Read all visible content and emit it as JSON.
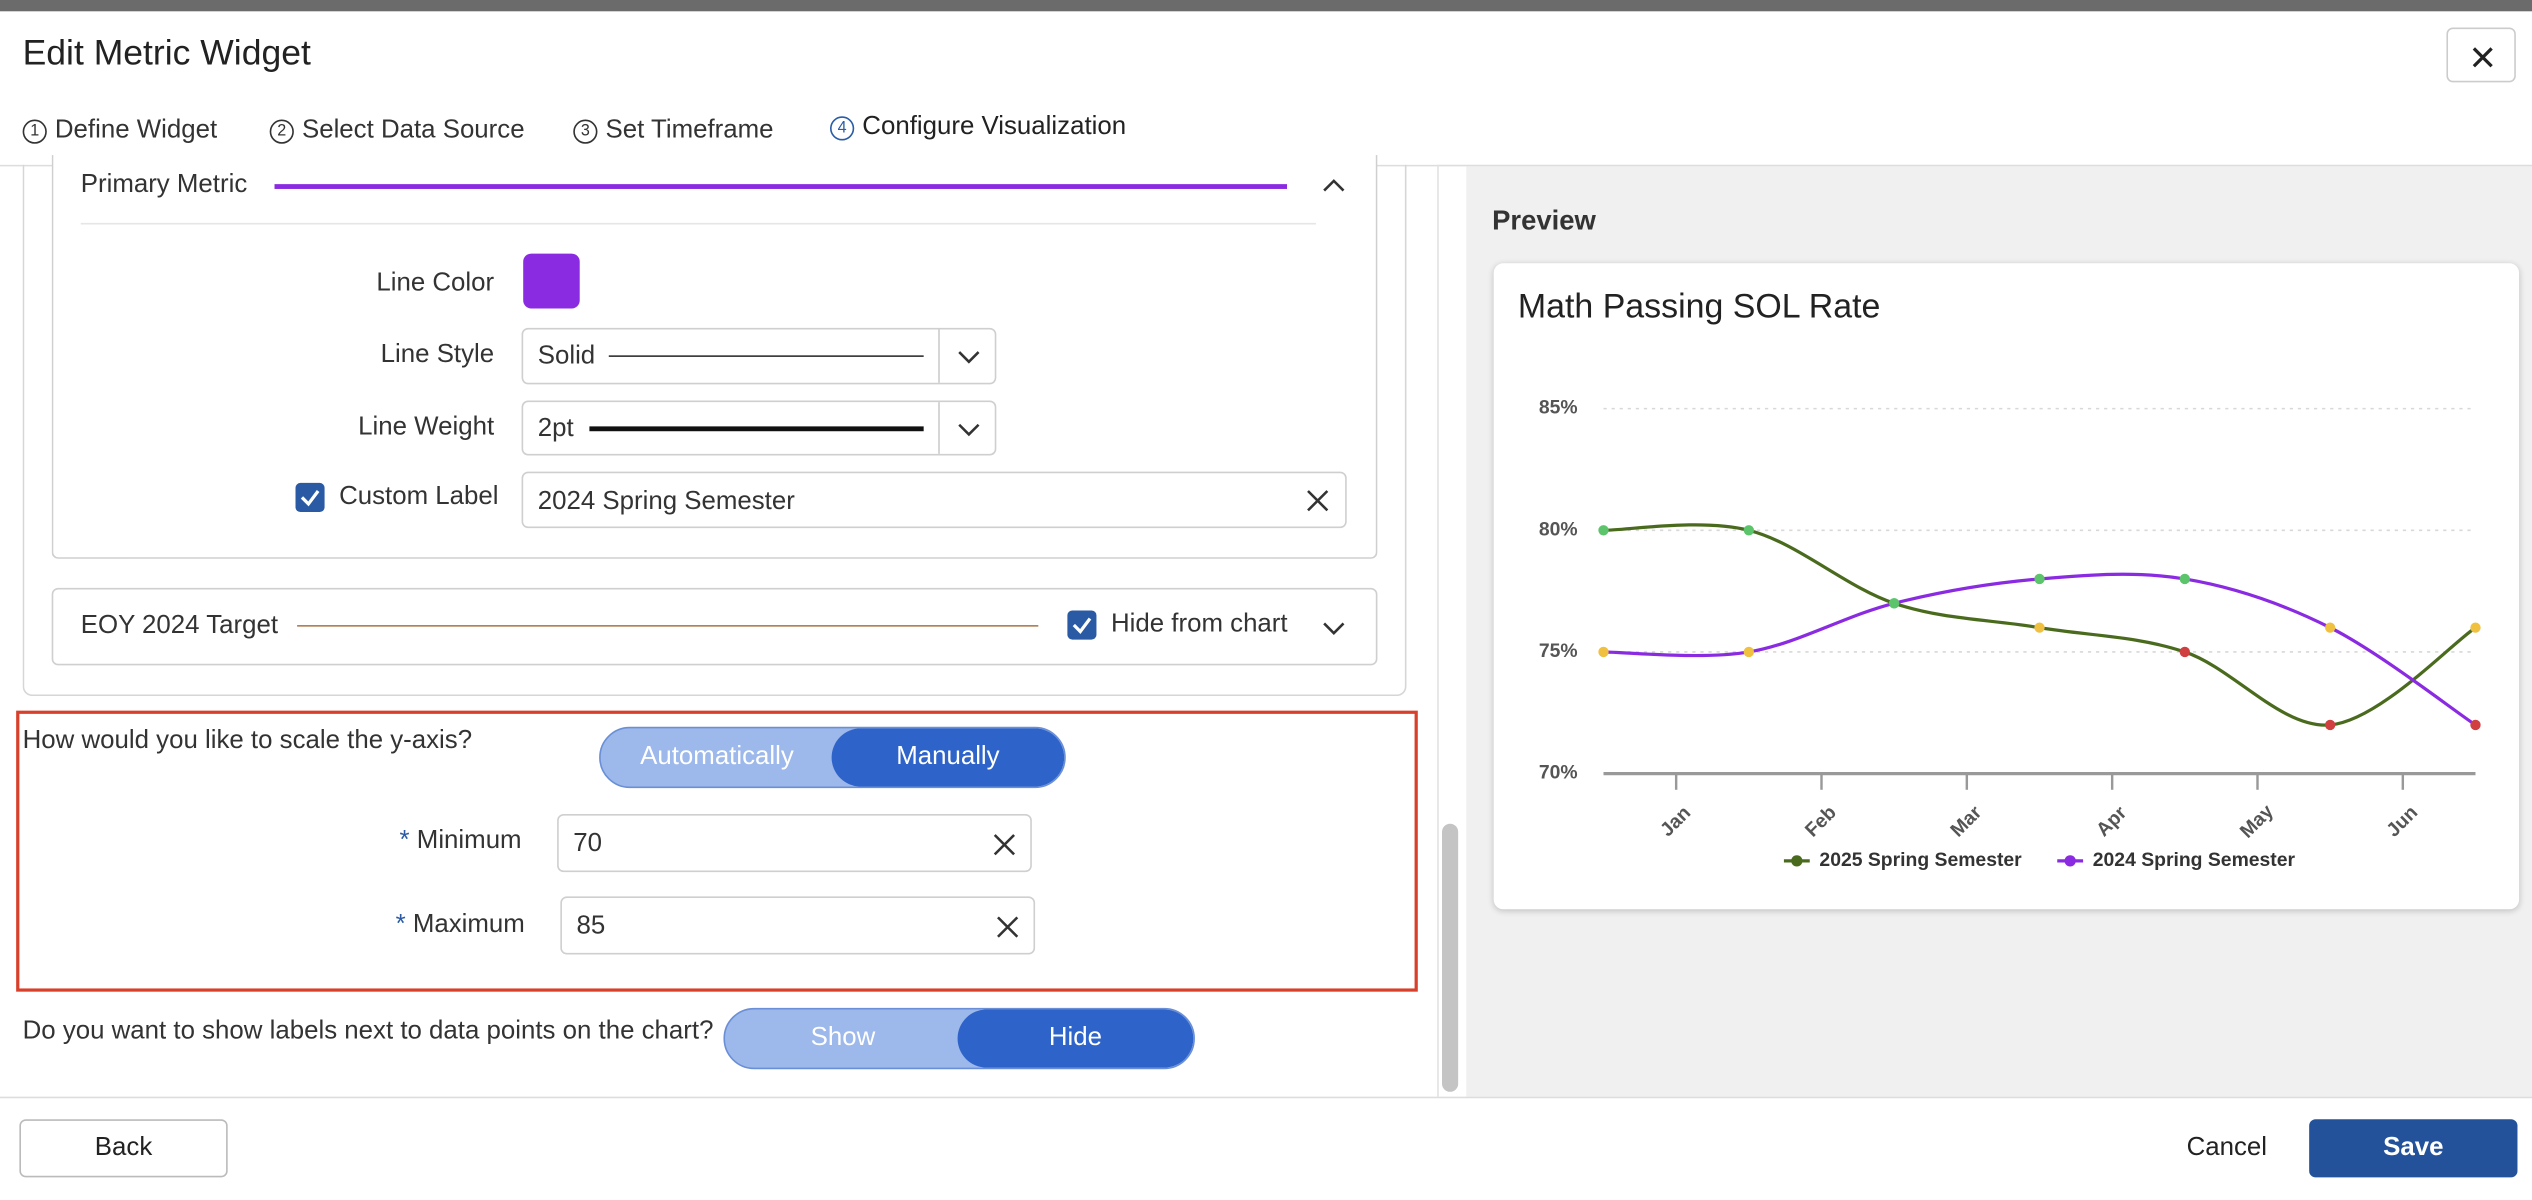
{
  "header": {
    "title": "Edit Metric Widget"
  },
  "tabs": [
    {
      "number": "1",
      "label": "Define Widget"
    },
    {
      "number": "2",
      "label": "Select Data Source"
    },
    {
      "number": "3",
      "label": "Set Timeframe"
    },
    {
      "number": "4",
      "label": "Configure Visualization"
    }
  ],
  "active_tab": 3,
  "primary_metric": {
    "title": "Primary Metric",
    "line_color": {
      "label": "Line Color",
      "value": "#8a2be2"
    },
    "line_style": {
      "label": "Line Style",
      "value": "Solid"
    },
    "line_weight": {
      "label": "Line Weight",
      "value": "2pt"
    },
    "custom_label": {
      "label": "Custom Label",
      "checked": true,
      "value": "2024 Spring Semester"
    }
  },
  "eoy_target": {
    "title": "EOY 2024 Target",
    "hide": {
      "label": "Hide from chart",
      "checked": true
    }
  },
  "y_scale": {
    "question": "How would you like to scale the y-axis?",
    "options": [
      "Automatically",
      "Manually"
    ],
    "selected": 1,
    "required_mark": "*",
    "minimum": {
      "label": "Minimum",
      "value": "70"
    },
    "maximum": {
      "label": "Maximum",
      "value": "85"
    }
  },
  "data_labels": {
    "question": "Do you want to show labels next to data points on the chart?",
    "options": [
      "Show",
      "Hide"
    ],
    "selected": 1
  },
  "footer": {
    "back": "Back",
    "cancel": "Cancel",
    "save": "Save"
  },
  "preview": {
    "title": "Preview",
    "chart": {
      "type": "line",
      "title": "Math Passing SOL Rate",
      "x": [
        0,
        1,
        2,
        3,
        4,
        5,
        6
      ],
      "xlim": [
        0,
        6
      ],
      "xticks": [
        {
          "value": 0.5,
          "label": "Jan"
        },
        {
          "value": 1.5,
          "label": "Feb"
        },
        {
          "value": 2.5,
          "label": "Mar"
        },
        {
          "value": 3.5,
          "label": "Apr"
        },
        {
          "value": 4.5,
          "label": "May"
        },
        {
          "value": 5.5,
          "label": "Jun"
        }
      ],
      "ylim": [
        70,
        85
      ],
      "yticks": [
        {
          "value": 70,
          "label": "70%"
        },
        {
          "value": 75,
          "label": "75%"
        },
        {
          "value": 80,
          "label": "80%"
        },
        {
          "value": 85,
          "label": "85%"
        }
      ],
      "grid": true,
      "legend": "bottom",
      "series": [
        {
          "name": "2025 Spring Semester",
          "color": "#4a6b1e",
          "values": [
            80,
            80,
            77,
            76,
            75,
            72,
            76
          ],
          "marker_colors": [
            "#5cc46a",
            "#5cc46a",
            "#5cc46a",
            "#f0c040",
            "#d04040",
            "#d04040",
            "#f0c040"
          ]
        },
        {
          "name": "2024 Spring Semester",
          "color": "#8a2be2",
          "values": [
            75,
            75,
            77,
            78,
            78,
            76,
            72
          ],
          "marker_colors": [
            "#f0c040",
            "#f0c040",
            "#5cc46a",
            "#5cc46a",
            "#5cc46a",
            "#f0c040",
            "#d04040"
          ]
        }
      ]
    }
  }
}
